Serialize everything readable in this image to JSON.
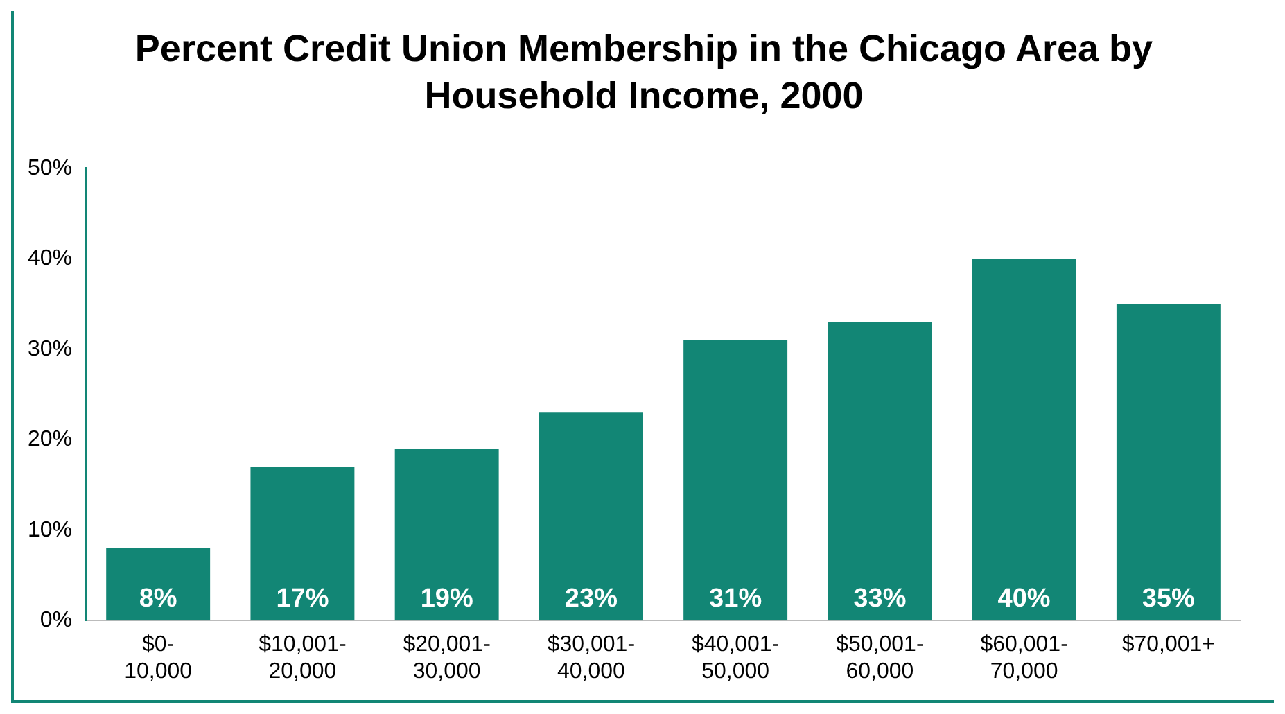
{
  "chart_data": {
    "type": "bar",
    "title": "Percent Credit Union Membership in the Chicago Area by Household Income, 2000",
    "categories": [
      "$0-10,000",
      "$10,001-20,000",
      "$20,001-30,000",
      "$30,001-40,000",
      "$40,001-50,000",
      "$50,001-60,000",
      "$60,001-70,000",
      "$70,001+"
    ],
    "values": [
      8,
      17,
      19,
      23,
      31,
      33,
      40,
      35
    ],
    "color": "#128675",
    "ylim": [
      0,
      50
    ],
    "yticks": [
      {
        "value": 0,
        "label": "0%"
      },
      {
        "value": 10,
        "label": "10%"
      },
      {
        "value": 20,
        "label": "20%"
      },
      {
        "value": 30,
        "label": "30%"
      },
      {
        "value": 40,
        "label": "40%"
      },
      {
        "value": 50,
        "label": "50%"
      }
    ],
    "value_labels": [
      "8%",
      "17%",
      "19%",
      "23%",
      "31%",
      "33%",
      "40%",
      "35%"
    ],
    "grid": false,
    "legend": false
  }
}
